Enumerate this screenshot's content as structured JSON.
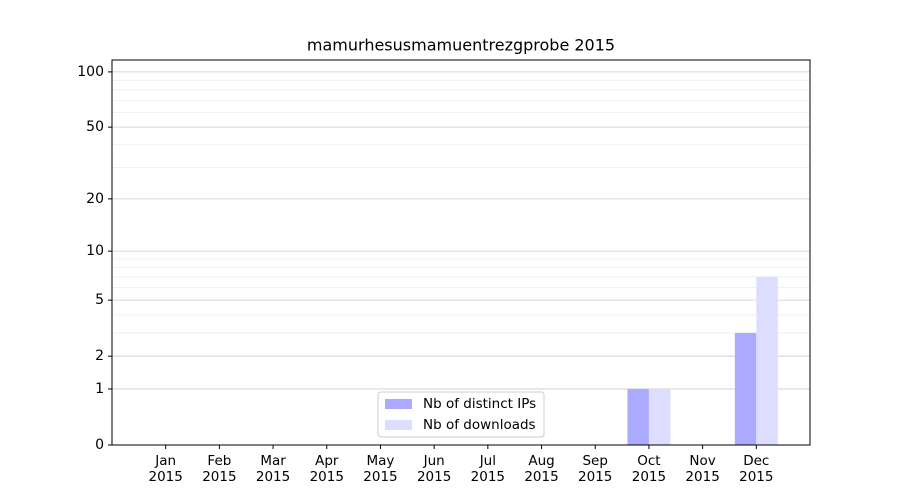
{
  "chart_data": {
    "type": "bar",
    "title": "mamurhesusmamuentrezgprobe 2015",
    "categories": [
      "Jan\n2015",
      "Feb\n2015",
      "Mar\n2015",
      "Apr\n2015",
      "May\n2015",
      "Jun\n2015",
      "Jul\n2015",
      "Aug\n2015",
      "Sep\n2015",
      "Oct\n2015",
      "Nov\n2015",
      "Dec\n2015"
    ],
    "series": [
      {
        "name": "Nb of distinct IPs",
        "color": "#aaaaff",
        "values": [
          0,
          0,
          0,
          0,
          0,
          0,
          0,
          0,
          0,
          1,
          0,
          3
        ]
      },
      {
        "name": "Nb of downloads",
        "color": "#ddddff",
        "values": [
          0,
          0,
          0,
          0,
          0,
          0,
          0,
          0,
          0,
          1,
          0,
          7
        ]
      }
    ],
    "yscale": "log1p",
    "ylim": [
      0,
      116
    ],
    "yticks": [
      0,
      1,
      2,
      5,
      10,
      20,
      50,
      100
    ],
    "yminorticks": [
      3,
      4,
      6,
      7,
      8,
      9,
      30,
      40,
      60,
      70,
      80,
      90
    ],
    "grid": true,
    "legend": "lower center"
  }
}
